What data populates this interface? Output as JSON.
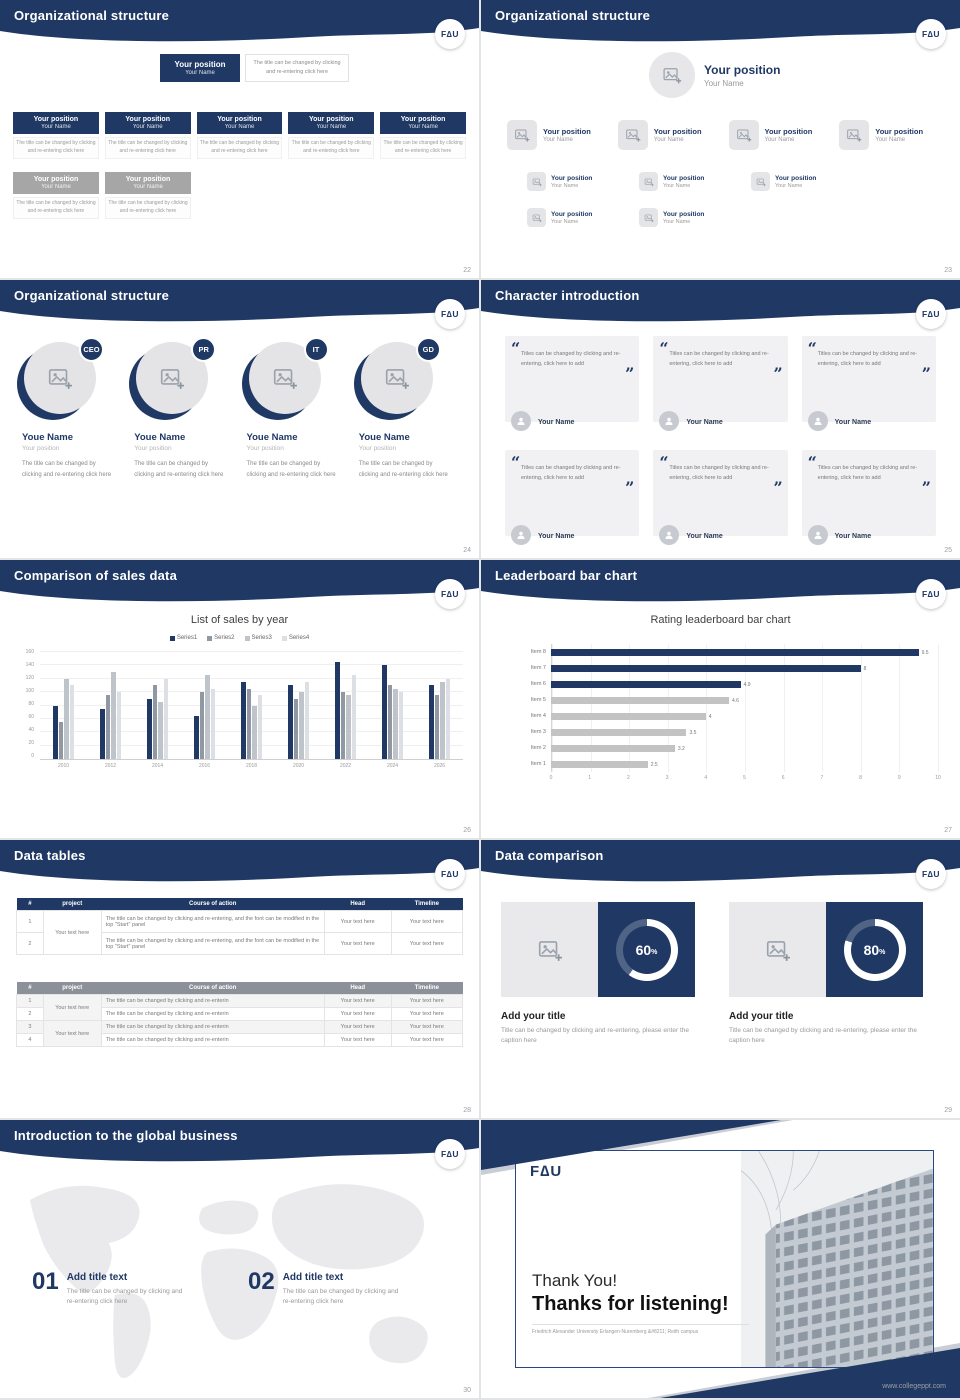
{
  "brand": {
    "logo": "F∆U",
    "navy": "#1f3864",
    "site": "www.collegeppt.com"
  },
  "common": {
    "position": "Your position",
    "name": "Your Name",
    "note": "The title can be changed by clicking and re-entering click here"
  },
  "slides": {
    "org1": {
      "title": "Organizational structure",
      "page": "22"
    },
    "org2": {
      "title": "Organizational structure",
      "page": "23"
    },
    "org3": {
      "title": "Organizational structure",
      "page": "24",
      "name": "Youe Name",
      "position": "Your position",
      "desc": "The title can be changed by clicking and re-entering click here",
      "roles": [
        "CEO",
        "PR",
        "IT",
        "GD"
      ]
    },
    "characters": {
      "title": "Character introduction",
      "page": "25",
      "quote": "Titles can be changed by clicking and re-entering, click here to add",
      "name": "Your Name"
    },
    "sales": {
      "title": "Comparison of sales data",
      "page": "26"
    },
    "leaderboard": {
      "title": "Leaderboard bar chart",
      "page": "27"
    },
    "tables": {
      "title": "Data tables",
      "page": "28",
      "headers": [
        "#",
        "project",
        "Course of action",
        "Head",
        "Timeline"
      ],
      "t1": {
        "project": "Your text here",
        "rows": [
          {
            "num": "1",
            "course": "The title can be changed by clicking and re-entering, and the font can be modified in the top \"Start\" panel",
            "head": "Your text here",
            "timeline": "Your text here"
          },
          {
            "num": "2",
            "course": "The title can be changed by clicking and re-entering, and the font can be modified in the top \"Start\" panel",
            "head": "Your text here",
            "timeline": "Your text here"
          }
        ]
      },
      "t2": {
        "projects": [
          "Your text here",
          "Your text here"
        ],
        "rows": [
          {
            "num": "1",
            "course": "The title can be changed by clicking and re-enterin",
            "head": "Your text here",
            "timeline": "Your text here"
          },
          {
            "num": "2",
            "course": "The title can be changed by clicking and re-enterin",
            "head": "Your text here",
            "timeline": "Your text here"
          },
          {
            "num": "3",
            "course": "The title can be changed by clicking and re-enterin",
            "head": "Your text here",
            "timeline": "Your text here"
          },
          {
            "num": "4",
            "course": "The title can be changed by clicking and re-enterin",
            "head": "Your text here",
            "timeline": "Your text here"
          }
        ]
      }
    },
    "comparison": {
      "title": "Data comparison",
      "page": "29",
      "items": [
        {
          "percent": 60,
          "value": "60",
          "unit": "%",
          "heading": "Add your title",
          "caption": "Title can be changed by clicking and re-entering, please enter the caption here"
        },
        {
          "percent": 80,
          "value": "80",
          "unit": "%",
          "heading": "Add your title",
          "caption": "Title can be changed by clicking and re-entering, please enter the caption here"
        }
      ]
    },
    "global": {
      "title": "Introduction to the global business",
      "page": "30",
      "items": [
        {
          "num": "01",
          "heading": "Add title text",
          "caption": "The title can be changed by clicking and re-entering click here"
        },
        {
          "num": "02",
          "heading": "Add title text",
          "caption": "The title can be changed by clicking and re-entering click here"
        }
      ]
    },
    "thanks": {
      "logo": "F∆U",
      "line1": "Thank You!",
      "line2": "Thanks for listening!",
      "caption": "Friedrich Alexander University Erlangen-Nuremberg &#8211; Reith campus",
      "site": "www.collegeppt.com"
    }
  },
  "chart_data": [
    {
      "type": "bar",
      "title": "List of sales by year",
      "categories": [
        "2010",
        "2012",
        "2014",
        "2016",
        "2018",
        "2020",
        "2022",
        "2024",
        "2026"
      ],
      "series": [
        {
          "name": "Series1",
          "color": "#1f3864",
          "values": [
            80,
            75,
            90,
            65,
            115,
            110,
            145,
            140,
            110
          ]
        },
        {
          "name": "Series2",
          "color": "#8f98a3",
          "values": [
            55,
            95,
            110,
            100,
            105,
            90,
            100,
            110,
            95
          ]
        },
        {
          "name": "Series3",
          "color": "#bfc4cb",
          "values": [
            120,
            130,
            85,
            125,
            80,
            100,
            95,
            105,
            115
          ]
        },
        {
          "name": "Series4",
          "color": "#dcdfe3",
          "values": [
            110,
            100,
            120,
            105,
            95,
            115,
            125,
            100,
            120
          ]
        }
      ],
      "ylim": [
        0,
        160
      ],
      "ytick_step": 20,
      "grid": true,
      "legend_position": "top"
    },
    {
      "type": "bar",
      "orientation": "horizontal",
      "title": "Rating leaderboard bar chart",
      "categories": [
        "Item 8",
        "Item 7",
        "Item 6",
        "Item 5",
        "Item 4",
        "Item 3",
        "Item 2",
        "Item 1"
      ],
      "values": [
        9.5,
        8,
        4.9,
        4.6,
        4,
        3.5,
        3.2,
        2.5
      ],
      "labels": [
        "9.5",
        "8",
        "4.9",
        "4.6",
        "4",
        "3.5",
        "3.2",
        "2.5"
      ],
      "colors": [
        "#1f3864",
        "#1f3864",
        "#1f3864",
        "#c3c3c3",
        "#c3c3c3",
        "#c3c3c3",
        "#c3c3c3",
        "#c3c3c3"
      ],
      "xlim": [
        0,
        10
      ],
      "xticks": [
        0,
        1,
        2,
        3,
        4,
        5,
        6,
        7,
        8,
        9,
        10
      ],
      "grid": true
    }
  ]
}
